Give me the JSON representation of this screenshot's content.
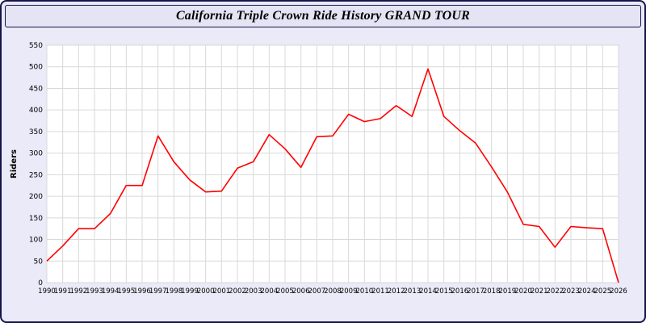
{
  "header": {
    "title": "California Triple Crown Ride History GRAND TOUR"
  },
  "chart_data": {
    "type": "line",
    "title": "California Triple Crown Ride History GRAND TOUR",
    "xlabel": "",
    "ylabel": "Riders",
    "ylim": [
      0,
      550
    ],
    "ytick_step": 50,
    "grid": true,
    "legend": "none",
    "line_color": "#ff0000",
    "plot_bg": "#ffffff",
    "grid_color": "#d9d9d9",
    "axis_text_color": "#000000",
    "x": [
      1990,
      1991,
      1992,
      1993,
      1994,
      1995,
      1996,
      1997,
      1998,
      1999,
      2000,
      2001,
      2002,
      2003,
      2004,
      2005,
      2006,
      2007,
      2008,
      2009,
      2010,
      2011,
      2012,
      2013,
      2014,
      2015,
      2016,
      2017,
      2018,
      2019,
      2020,
      2021,
      2022,
      2023,
      2024,
      2025,
      2026
    ],
    "series": [
      {
        "name": "Riders",
        "values": [
          50,
          85,
          125,
          125,
          160,
          225,
          225,
          340,
          280,
          238,
          210,
          212,
          265,
          280,
          343,
          310,
          267,
          338,
          340,
          390,
          373,
          380,
          410,
          385,
          495,
          385,
          352,
          323,
          268,
          210,
          135,
          130,
          82,
          130,
          127,
          125,
          0
        ]
      }
    ]
  }
}
